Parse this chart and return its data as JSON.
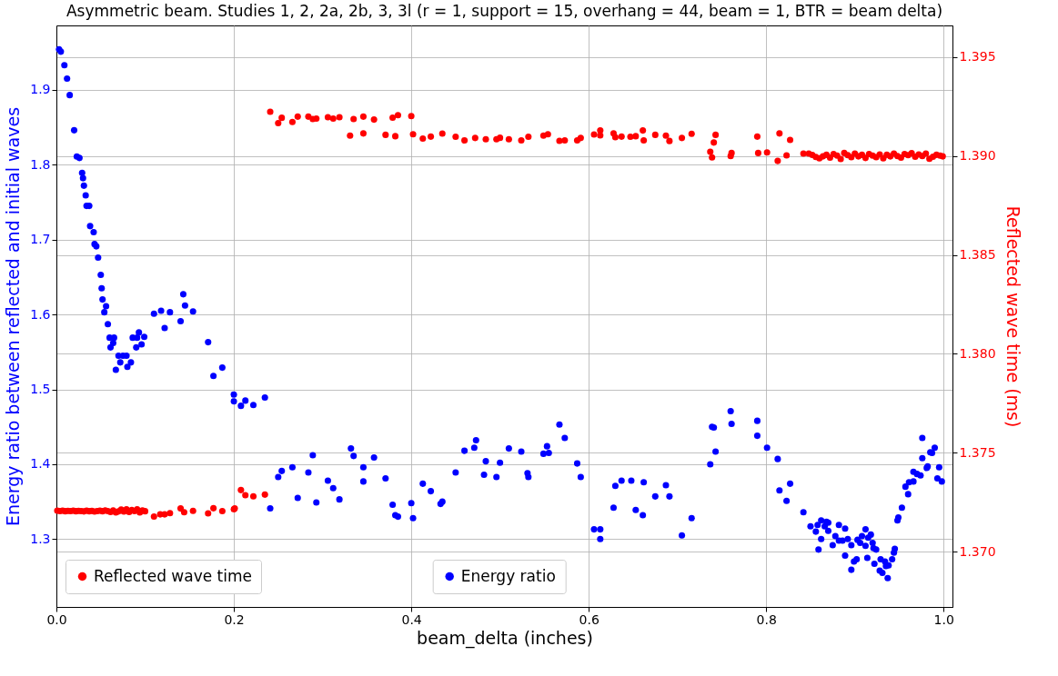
{
  "chart_data": {
    "type": "scatter",
    "title": "Asymmetric beam. Studies 1, 2, 2a, 2b, 3, 3l (r = 1, support = 15, overhang = 44, beam = 1, BTR = beam delta)",
    "xlabel": "beam_delta (inches)",
    "ylabel": "Energy ratio between reflected and initial waves",
    "y2label": "Reflected wave time (ms)",
    "xlim": [
      0,
      1.01
    ],
    "xticks": [
      {
        "value": 0,
        "label": "0.0"
      },
      0.2,
      0.4,
      0.6,
      0.8,
      {
        "value": 1,
        "label": "1.0"
      }
    ],
    "ylim": [
      1.2094,
      1.986
    ],
    "yticks": [
      1.3,
      1.4,
      1.5,
      1.6,
      1.7,
      1.8,
      1.9
    ],
    "y2lim": [
      1.3672,
      1.3966
    ],
    "y2ticks": [
      {
        "value": 1.37,
        "label": "1.370"
      },
      1.375,
      {
        "value": 1.38,
        "label": "1.380"
      },
      1.385,
      {
        "value": 1.39,
        "label": "1.390"
      },
      1.395
    ],
    "grid": true,
    "legend": "bottom",
    "marker": "circle",
    "series": [
      {
        "name": "Energy ratio",
        "color": "#0000ff",
        "x": [
          0.003,
          0.005,
          0.009,
          0.012,
          0.015,
          0.02,
          0.023,
          0.026,
          0.029,
          0.03,
          0.031,
          0.033,
          0.034,
          0.037,
          0.038,
          0.042,
          0.043,
          0.045,
          0.047,
          0.05,
          0.051,
          0.052,
          0.054,
          0.056,
          0.058,
          0.06,
          0.061,
          0.064,
          0.065,
          0.067,
          0.07,
          0.072,
          0.075,
          0.079,
          0.08,
          0.084,
          0.086,
          0.09,
          0.091,
          0.093,
          0.096,
          0.099,
          0.11,
          0.118,
          0.122,
          0.128,
          0.14,
          0.143,
          0.145,
          0.154,
          0.171,
          0.177,
          0.187,
          0.2,
          0.2,
          0.208,
          0.213,
          0.222,
          0.235,
          0.241,
          0.25,
          0.254,
          0.266,
          0.272,
          0.284,
          0.289,
          0.293,
          0.306,
          0.312,
          0.319,
          0.332,
          0.335,
          0.346,
          0.346,
          0.358,
          0.371,
          0.379,
          0.382,
          0.385,
          0.4,
          0.402,
          0.413,
          0.422,
          0.433,
          0.435,
          0.45,
          0.46,
          0.471,
          0.473,
          0.482,
          0.484,
          0.496,
          0.5,
          0.51,
          0.524,
          0.531,
          0.532,
          0.549,
          0.553,
          0.555,
          0.567,
          0.573,
          0.587,
          0.591,
          0.606,
          0.613,
          0.613,
          0.628,
          0.63,
          0.637,
          0.648,
          0.653,
          0.661,
          0.662,
          0.675,
          0.687,
          0.691,
          0.705,
          0.716,
          0.737,
          0.739,
          0.741,
          0.743,
          0.76,
          0.761,
          0.79,
          0.79,
          0.801,
          0.813,
          0.815,
          0.827,
          0.823,
          0.842,
          0.85,
          0.856,
          0.858,
          0.859,
          0.862,
          0.862,
          0.866,
          0.868,
          0.87,
          0.87,
          0.875,
          0.878,
          0.882,
          0.882,
          0.886,
          0.889,
          0.889,
          0.892,
          0.896,
          0.896,
          0.899,
          0.902,
          0.903,
          0.906,
          0.908,
          0.912,
          0.912,
          0.914,
          0.915,
          0.918,
          0.92,
          0.921,
          0.922,
          0.924,
          0.929,
          0.928,
          0.931,
          0.934,
          0.935,
          0.937,
          0.938,
          0.942,
          0.944,
          0.945,
          0.948,
          0.949,
          0.953,
          0.957,
          0.96,
          0.961,
          0.966,
          0.966,
          0.97,
          0.974,
          0.976,
          0.976,
          0.981,
          0.982,
          0.985,
          0.987,
          0.99,
          0.993,
          0.995,
          0.998
        ],
        "values": [
          1.954,
          1.951,
          1.933,
          1.915,
          1.893,
          1.846,
          1.811,
          1.809,
          1.789,
          1.782,
          1.772,
          1.759,
          1.745,
          1.745,
          1.718,
          1.71,
          1.694,
          1.691,
          1.676,
          1.653,
          1.635,
          1.62,
          1.603,
          1.611,
          1.587,
          1.569,
          1.556,
          1.562,
          1.569,
          1.526,
          1.545,
          1.536,
          1.545,
          1.545,
          1.53,
          1.536,
          1.569,
          1.556,
          1.569,
          1.576,
          1.56,
          1.57,
          1.601,
          1.605,
          1.582,
          1.603,
          1.591,
          1.627,
          1.612,
          1.604,
          1.563,
          1.518,
          1.529,
          1.493,
          1.484,
          1.478,
          1.485,
          1.479,
          1.489,
          1.341,
          1.383,
          1.391,
          1.396,
          1.355,
          1.389,
          1.412,
          1.349,
          1.378,
          1.368,
          1.353,
          1.421,
          1.411,
          1.396,
          1.377,
          1.409,
          1.381,
          1.346,
          1.332,
          1.33,
          1.348,
          1.328,
          1.374,
          1.364,
          1.347,
          1.35,
          1.389,
          1.418,
          1.422,
          1.432,
          1.386,
          1.404,
          1.383,
          1.402,
          1.421,
          1.417,
          1.388,
          1.383,
          1.414,
          1.424,
          1.415,
          1.453,
          1.435,
          1.401,
          1.383,
          1.313,
          1.313,
          1.3,
          1.342,
          1.371,
          1.378,
          1.378,
          1.339,
          1.332,
          1.376,
          1.357,
          1.372,
          1.357,
          1.305,
          1.328,
          1.4,
          1.45,
          1.449,
          1.417,
          1.471,
          1.454,
          1.458,
          1.438,
          1.422,
          1.407,
          1.365,
          1.374,
          1.351,
          1.336,
          1.317,
          1.31,
          1.319,
          1.286,
          1.325,
          1.3,
          1.317,
          1.323,
          1.322,
          1.311,
          1.292,
          1.304,
          1.319,
          1.298,
          1.298,
          1.314,
          1.278,
          1.3,
          1.292,
          1.259,
          1.27,
          1.273,
          1.299,
          1.295,
          1.304,
          1.313,
          1.291,
          1.275,
          1.302,
          1.306,
          1.295,
          1.288,
          1.267,
          1.286,
          1.273,
          1.258,
          1.255,
          1.27,
          1.264,
          1.248,
          1.265,
          1.273,
          1.282,
          1.287,
          1.325,
          1.329,
          1.342,
          1.37,
          1.36,
          1.376,
          1.377,
          1.39,
          1.387,
          1.385,
          1.408,
          1.435,
          1.395,
          1.397,
          1.416,
          1.415,
          1.422,
          1.381,
          1.396,
          1.377
        ]
      },
      {
        "name": "Reflected wave time",
        "color": "#ff0000",
        "axis": "y2",
        "x": [
          0.001,
          0.004,
          0.007,
          0.01,
          0.013,
          0.016,
          0.019,
          0.022,
          0.025,
          0.028,
          0.031,
          0.034,
          0.037,
          0.04,
          0.043,
          0.046,
          0.049,
          0.052,
          0.055,
          0.058,
          0.061,
          0.064,
          0.067,
          0.07,
          0.073,
          0.076,
          0.079,
          0.082,
          0.085,
          0.088,
          0.091,
          0.094,
          0.097,
          0.1,
          0.11,
          0.117,
          0.122,
          0.128,
          0.14,
          0.144,
          0.154,
          0.171,
          0.177,
          0.187,
          0.2,
          0.201,
          0.208,
          0.213,
          0.222,
          0.235,
          0.241,
          0.25,
          0.254,
          0.266,
          0.272,
          0.284,
          0.289,
          0.293,
          0.306,
          0.312,
          0.319,
          0.331,
          0.335,
          0.346,
          0.346,
          0.358,
          0.371,
          0.379,
          0.382,
          0.385,
          0.4,
          0.402,
          0.413,
          0.422,
          0.435,
          0.45,
          0.46,
          0.472,
          0.484,
          0.496,
          0.5,
          0.51,
          0.524,
          0.532,
          0.549,
          0.554,
          0.567,
          0.573,
          0.587,
          0.591,
          0.606,
          0.613,
          0.613,
          0.628,
          0.63,
          0.637,
          0.647,
          0.653,
          0.661,
          0.662,
          0.675,
          0.687,
          0.691,
          0.705,
          0.716,
          0.737,
          0.739,
          0.741,
          0.743,
          0.76,
          0.761,
          0.79,
          0.791,
          0.801,
          0.813,
          0.815,
          0.823,
          0.827,
          0.842,
          0.848,
          0.852,
          0.856,
          0.86,
          0.864,
          0.868,
          0.872,
          0.876,
          0.88,
          0.884,
          0.888,
          0.892,
          0.896,
          0.9,
          0.904,
          0.908,
          0.912,
          0.916,
          0.92,
          0.924,
          0.928,
          0.932,
          0.936,
          0.94,
          0.944,
          0.948,
          0.952,
          0.956,
          0.96,
          0.964,
          0.968,
          0.972,
          0.976,
          0.98,
          0.984,
          0.988,
          0.992,
          0.996,
          0.999
        ],
        "values": [
          1.37207,
          1.37205,
          1.37207,
          1.37204,
          1.37206,
          1.37205,
          1.37207,
          1.37204,
          1.37206,
          1.37205,
          1.37203,
          1.37207,
          1.37204,
          1.37206,
          1.37202,
          1.37205,
          1.37207,
          1.37204,
          1.37208,
          1.37205,
          1.372,
          1.37208,
          1.37198,
          1.37203,
          1.37212,
          1.37202,
          1.37214,
          1.372,
          1.3721,
          1.37205,
          1.37214,
          1.37198,
          1.37208,
          1.37204,
          1.37177,
          1.37188,
          1.37188,
          1.37194,
          1.37218,
          1.37199,
          1.37206,
          1.37193,
          1.37219,
          1.37205,
          1.37214,
          1.37218,
          1.37311,
          1.37285,
          1.37279,
          1.37288,
          1.39224,
          1.39166,
          1.39193,
          1.39172,
          1.39199,
          1.39199,
          1.39187,
          1.39189,
          1.39196,
          1.39189,
          1.39196,
          1.39103,
          1.39187,
          1.39199,
          1.39114,
          1.39184,
          1.39107,
          1.39194,
          1.391,
          1.39206,
          1.39202,
          1.3911,
          1.39088,
          1.39098,
          1.39113,
          1.39097,
          1.39079,
          1.39091,
          1.39085,
          1.39085,
          1.39092,
          1.39085,
          1.39079,
          1.39097,
          1.39103,
          1.3911,
          1.39077,
          1.39079,
          1.39079,
          1.39091,
          1.39109,
          1.39129,
          1.39104,
          1.39114,
          1.39095,
          1.39098,
          1.39097,
          1.391,
          1.39129,
          1.39079,
          1.39107,
          1.39103,
          1.39076,
          1.39091,
          1.39112,
          1.39021,
          1.38993,
          1.39068,
          1.39107,
          1.39,
          1.39015,
          1.39098,
          1.39015,
          1.39018,
          1.38975,
          1.39114,
          1.39003,
          1.39081,
          1.39012,
          1.39012,
          1.39005,
          1.38995,
          1.38988,
          1.38998,
          1.39006,
          1.38992,
          1.3901,
          1.39002,
          1.38985,
          1.39015,
          1.39004,
          1.38994,
          1.39012,
          1.38998,
          1.39006,
          1.3899,
          1.3901,
          1.39002,
          1.38994,
          1.39008,
          1.38988,
          1.39006,
          1.38998,
          1.39012,
          1.39,
          1.38992,
          1.3901,
          1.39004,
          1.39014,
          1.38996,
          1.39008,
          1.39,
          1.39012,
          1.38986,
          1.38996,
          1.39006,
          1.39002,
          1.38998
        ]
      }
    ]
  }
}
